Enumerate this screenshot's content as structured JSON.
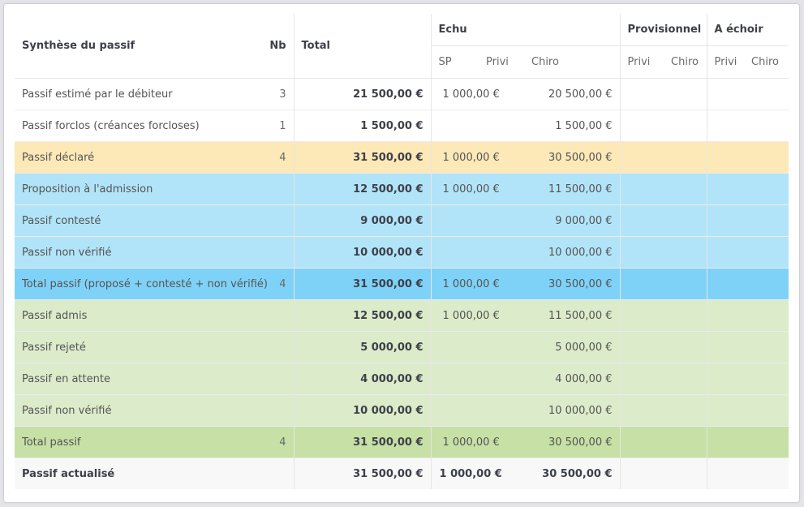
{
  "header": {
    "title": "Synthèse du passif",
    "nb": "Nb",
    "total": "Total",
    "echu": "Echu",
    "provisionnel": "Provisionnel",
    "a_echoir": "A échoir",
    "sp": "SP",
    "privi": "Privi",
    "chiro": "Chiro"
  },
  "rows": [
    {
      "label": "Passif estimé par le débiteur",
      "nb": "3",
      "total": "21 500,00 €",
      "sp": "1 000,00 €",
      "chiro": "20 500,00 €"
    },
    {
      "label": "Passif forclos (créances forcloses)",
      "nb": "1",
      "total": "1 500,00 €",
      "sp": "",
      "chiro": "1 500,00 €"
    },
    {
      "label": "Passif déclaré",
      "nb": "4",
      "total": "31 500,00 €",
      "sp": "1 000,00 €",
      "chiro": "30 500,00 €"
    },
    {
      "label": "Proposition à l'admission",
      "nb": "",
      "total": "12 500,00 €",
      "sp": "1 000,00 €",
      "chiro": "11 500,00 €"
    },
    {
      "label": "Passif contesté",
      "nb": "",
      "total": "9 000,00 €",
      "sp": "",
      "chiro": "9 000,00 €"
    },
    {
      "label": "Passif non vérifié",
      "nb": "",
      "total": "10 000,00 €",
      "sp": "",
      "chiro": "10 000,00 €"
    },
    {
      "label": "Total passif (proposé + contesté + non vérifié)",
      "nb": "4",
      "total": "31 500,00 €",
      "sp": "1 000,00 €",
      "chiro": "30 500,00 €"
    },
    {
      "label": "Passif admis",
      "nb": "",
      "total": "12 500,00 €",
      "sp": "1 000,00 €",
      "chiro": "11 500,00 €"
    },
    {
      "label": "Passif rejeté",
      "nb": "",
      "total": "5 000,00 €",
      "sp": "",
      "chiro": "5 000,00 €"
    },
    {
      "label": "Passif en attente",
      "nb": "",
      "total": "4 000,00 €",
      "sp": "",
      "chiro": "4 000,00 €"
    },
    {
      "label": "Passif non vérifié",
      "nb": "",
      "total": "10 000,00 €",
      "sp": "",
      "chiro": "10 000,00 €"
    },
    {
      "label": "Total passif",
      "nb": "4",
      "total": "31 500,00 €",
      "sp": "1 000,00 €",
      "chiro": "30 500,00 €"
    },
    {
      "label": "Passif actualisé",
      "nb": "",
      "total": "31 500,00 €",
      "sp": "1 000,00 €",
      "chiro": "30 500,00 €"
    }
  ],
  "colors": {
    "declared": "#fde9b7",
    "blue": "#b1e4f8",
    "blue_total": "#7fd2f7",
    "green": "#dcebc9",
    "green_total": "#c6e0a5"
  }
}
